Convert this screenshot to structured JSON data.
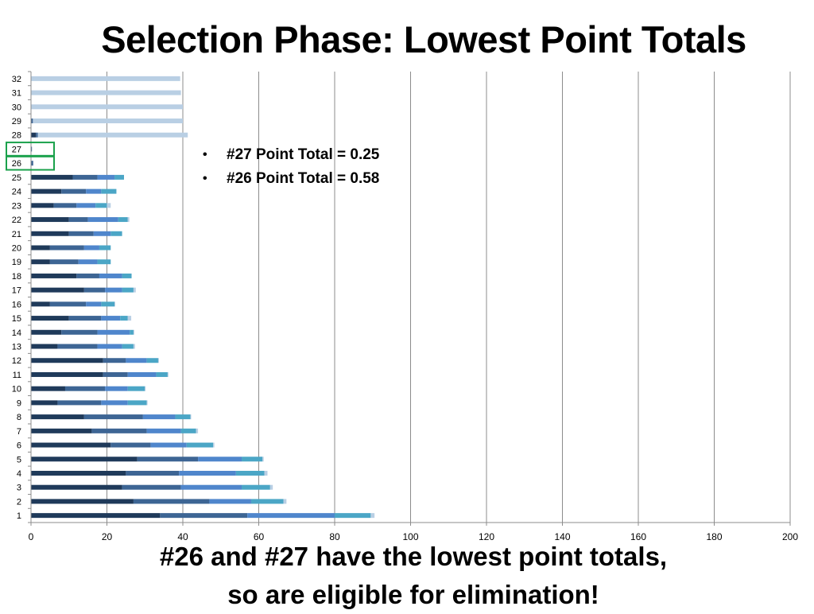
{
  "slide": {
    "title": "Selection Phase: Lowest Point Totals",
    "bullets": [
      "#27 Point Total = 0.25",
      "#26 Point Total = 0.58"
    ],
    "caption_line1": "#26 and #27 have the lowest point totals,",
    "caption_line2": "so are eligible for elimination!"
  },
  "chart_data": {
    "type": "bar",
    "orientation": "horizontal",
    "stacked": true,
    "title": "",
    "xlabel": "",
    "ylabel": "",
    "xlim": [
      0,
      200
    ],
    "x_ticks": [
      0,
      20,
      40,
      60,
      80,
      100,
      120,
      140,
      160,
      180,
      200
    ],
    "grid": true,
    "legend": "none",
    "categories": [
      "1",
      "2",
      "3",
      "4",
      "5",
      "6",
      "7",
      "8",
      "9",
      "10",
      "11",
      "12",
      "13",
      "14",
      "15",
      "16",
      "17",
      "18",
      "19",
      "20",
      "21",
      "22",
      "23",
      "24",
      "25",
      "26",
      "27",
      "28",
      "29",
      "30",
      "31",
      "32"
    ],
    "highlighted_categories": [
      "26",
      "27"
    ],
    "highlight_color": "#1aa14b",
    "series": [
      {
        "color": "#1f3a5a",
        "values": [
          34,
          27,
          24,
          25,
          28,
          21,
          16,
          14,
          7,
          9,
          19,
          19,
          7,
          8,
          10,
          5,
          14,
          12,
          5,
          5,
          10,
          10,
          6,
          8,
          11,
          0,
          0,
          1.3,
          0,
          0,
          0,
          0
        ]
      },
      {
        "color": "#3d6594",
        "values": [
          23,
          20,
          15.5,
          14,
          16,
          10.5,
          14.5,
          15.5,
          11.5,
          10.5,
          6.5,
          6,
          10.5,
          9.5,
          8.5,
          9.5,
          5.5,
          6,
          7.5,
          9,
          6.5,
          5,
          6,
          6.5,
          6.5,
          0.58,
          0.25,
          0.5,
          0.5,
          0,
          0,
          0
        ]
      },
      {
        "color": "#4f86cc",
        "values": [
          23,
          11,
          16,
          15,
          11.5,
          9.5,
          9,
          8.5,
          7,
          6,
          7.5,
          5.5,
          6.5,
          8.5,
          5,
          4,
          4.5,
          6,
          5,
          4,
          4.5,
          8,
          5,
          4,
          4.5,
          0,
          0,
          0,
          0,
          0,
          0,
          0
        ]
      },
      {
        "color": "#4ba6c6",
        "values": [
          9.5,
          8.5,
          7.5,
          7.5,
          5.5,
          7,
          4,
          4,
          5,
          4.5,
          3,
          3,
          3,
          1,
          2,
          3.5,
          3,
          2.5,
          3.5,
          3,
          3,
          2.5,
          3,
          4,
          2.5,
          0,
          0,
          0,
          0,
          0,
          0,
          0
        ]
      },
      {
        "color": "#b9cfe4",
        "values": [
          1,
          0.8,
          0.7,
          0.8,
          0.3,
          0.3,
          0.5,
          0.2,
          0.2,
          0.2,
          0.2,
          0.2,
          0.4,
          0.2,
          0.9,
          0.2,
          0.6,
          0,
          0,
          0,
          0,
          0.4,
          1,
          0,
          0,
          0,
          0,
          39.5,
          39.5,
          40,
          39.5,
          39.3
        ]
      }
    ]
  }
}
